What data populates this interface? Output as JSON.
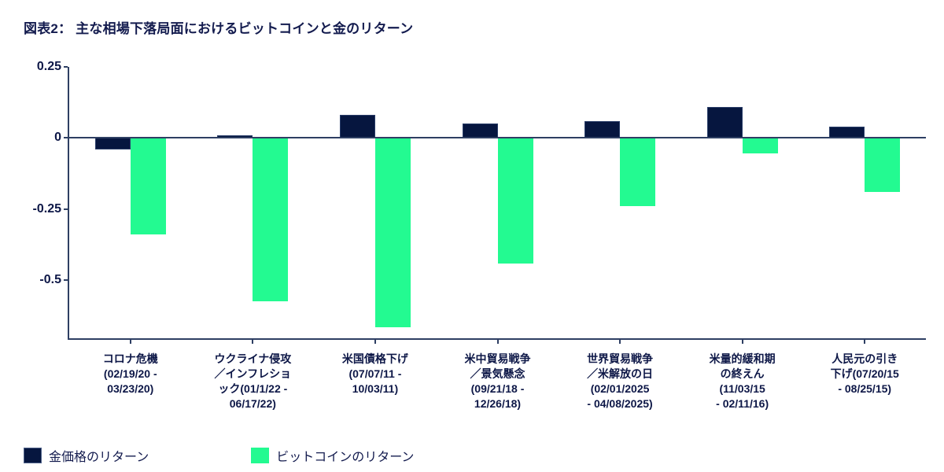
{
  "title": "図表2： 主な相場下落局面におけるビットコインと金のリターン",
  "colors": {
    "gold": "#06163f",
    "bitcoin": "#23fa91",
    "axis": "#2e3f63",
    "text": "#0d1747"
  },
  "legend": {
    "items": [
      {
        "label": "金価格のリターン",
        "color_key": "gold"
      },
      {
        "label": "ビットコインのリターン",
        "color_key": "bitcoin"
      }
    ]
  },
  "chart_data": {
    "type": "bar",
    "title": "図表2： 主な相場下落局面におけるビットコインと金のリターン",
    "categories": [
      "コロナ危機\n(02/19/20 -\n03/23/20)",
      "ウクライナ侵攻\n／インフレショ\nック(01/1/22 -\n06/17/22)",
      "米国債格下げ\n(07/07/11 -\n10/03/11)",
      "米中貿易戦争\n／景気懸念\n(09/21/18 -\n12/26/18)",
      "世界貿易戦争\n／米解放の日\n(02/01/2025\n- 04/08/2025)",
      "米量的緩和期\nの終えん\n(11/03/15\n- 02/11/16)",
      "人民元の引き\n下げ(07/20/15\n- 08/25/15)"
    ],
    "series": [
      {
        "name": "金価格のリターン",
        "color_key": "gold",
        "values": [
          -0.04,
          0.01,
          0.08,
          0.05,
          0.06,
          0.11,
          0.04
        ]
      },
      {
        "name": "ビットコインのリターン",
        "color_key": "bitcoin",
        "values": [
          -0.34,
          -0.575,
          -0.665,
          -0.44,
          -0.24,
          -0.055,
          -0.19
        ]
      }
    ],
    "xlabel": "",
    "ylabel": "",
    "yticks": [
      0.25,
      0,
      -0.25,
      -0.5
    ],
    "ytick_labels": [
      "0.25",
      "0",
      "-0.25",
      "-0.5"
    ],
    "ylim": [
      -0.704,
      0.25
    ],
    "grid": false,
    "legend_position": "bottom-left"
  }
}
